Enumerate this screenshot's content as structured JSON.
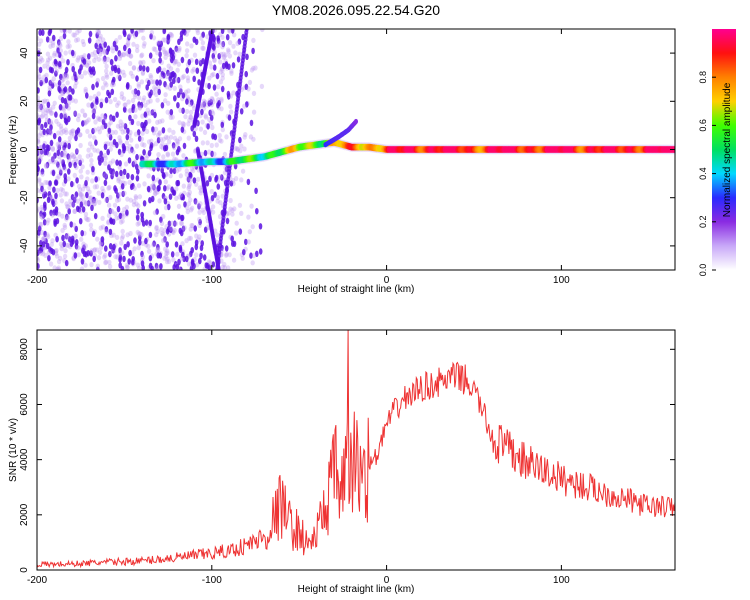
{
  "figure_title": "YM08.2026.095.22.54.G20",
  "colors": {
    "snr_line": "#ee3333",
    "frame": "#000000",
    "background": "#ffffff",
    "scatter_dots": "#6a1fe0",
    "colormap": [
      "#ffffff",
      "#c8a8f8",
      "#8a2be2",
      "#2a2aff",
      "#00d8ff",
      "#00e060",
      "#40ff00",
      "#ffd000",
      "#ff8000",
      "#ff1010",
      "#ff0090"
    ]
  },
  "chart_data": [
    {
      "type": "heatmap",
      "title": "YM08.2026.095.22.54.G20",
      "xlabel": "Height of straight line (km)",
      "ylabel": "Frequency (Hz)",
      "xlim": [
        -200,
        165
      ],
      "ylim": [
        -50,
        50
      ],
      "x_ticks": [
        -200,
        -100,
        0,
        100
      ],
      "x_tick_labels": [
        "-200",
        "-100",
        "0",
        "100"
      ],
      "y_ticks": [
        -40,
        -20,
        0,
        20,
        40
      ],
      "y_tick_labels": [
        "-40",
        "-20",
        "0",
        "20",
        "40"
      ],
      "colorbar": {
        "label": "Normalized spectral amplitude",
        "range": [
          0,
          1
        ],
        "ticks": [
          0.0,
          0.2,
          0.4,
          0.6,
          0.8
        ],
        "tick_labels": [
          "0.0",
          "0.2",
          "0.4",
          "0.6",
          "0.8"
        ]
      },
      "ridge": {
        "x": [
          -140,
          -120,
          -100,
          -90,
          -80,
          -70,
          -60,
          -50,
          -40,
          -30,
          -20,
          -10,
          0,
          10,
          20,
          30,
          40,
          50,
          60,
          70,
          80,
          90,
          100,
          110,
          120,
          130,
          140,
          150,
          165
        ],
        "freq": [
          -6,
          -6,
          -5,
          -5,
          -4,
          -3,
          -1,
          1,
          2,
          3,
          1,
          1,
          0,
          0,
          0,
          0,
          0,
          0,
          0,
          0,
          0,
          0,
          0,
          0,
          0,
          0,
          0,
          0,
          0
        ],
        "amplitude": [
          0.45,
          0.4,
          0.45,
          0.45,
          0.5,
          0.55,
          0.6,
          0.6,
          0.65,
          0.7,
          0.75,
          0.8,
          0.85,
          0.9,
          0.95,
          0.95,
          0.9,
          0.9,
          0.9,
          0.95,
          0.95,
          0.9,
          0.95,
          0.95,
          0.9,
          0.9,
          0.95,
          0.95,
          0.95
        ]
      },
      "branch": {
        "x": [
          -35,
          -28,
          -22,
          -17
        ],
        "freq": [
          2,
          5,
          8,
          12
        ],
        "amplitude": [
          0.3,
          0.25,
          0.25,
          0.2
        ]
      }
    },
    {
      "type": "line",
      "title": "",
      "xlabel": "Height of straight line (km)",
      "ylabel": "SNR (10 * v/v)",
      "xlim": [
        -200,
        165
      ],
      "ylim": [
        0,
        8700
      ],
      "x_ticks": [
        -200,
        -100,
        0,
        100
      ],
      "x_tick_labels": [
        "-200",
        "-100",
        "0",
        "100"
      ],
      "y_ticks": [
        0,
        2000,
        4000,
        6000,
        8000
      ],
      "y_tick_labels": [
        "0",
        "2000",
        "4000",
        "6000",
        "8000"
      ],
      "series": [
        {
          "name": "SNR",
          "x": [
            -200,
            -180,
            -160,
            -140,
            -120,
            -100,
            -90,
            -80,
            -70,
            -65,
            -60,
            -55,
            -50,
            -45,
            -40,
            -35,
            -30,
            -25,
            -20,
            -15,
            -10,
            -5,
            0,
            5,
            10,
            20,
            30,
            40,
            45,
            50,
            55,
            60,
            70,
            80,
            90,
            100,
            110,
            120,
            130,
            140,
            150,
            160,
            165
          ],
          "values": [
            200,
            220,
            280,
            330,
            450,
            600,
            700,
            900,
            1200,
            1800,
            2400,
            1600,
            1400,
            900,
            1300,
            2300,
            3500,
            3000,
            4000,
            3600,
            3800,
            4200,
            5300,
            5800,
            6200,
            6600,
            6800,
            7000,
            6900,
            6500,
            5800,
            4800,
            4300,
            3900,
            3600,
            3300,
            3100,
            2900,
            2700,
            2500,
            2300,
            2300,
            2200
          ]
        }
      ]
    }
  ]
}
